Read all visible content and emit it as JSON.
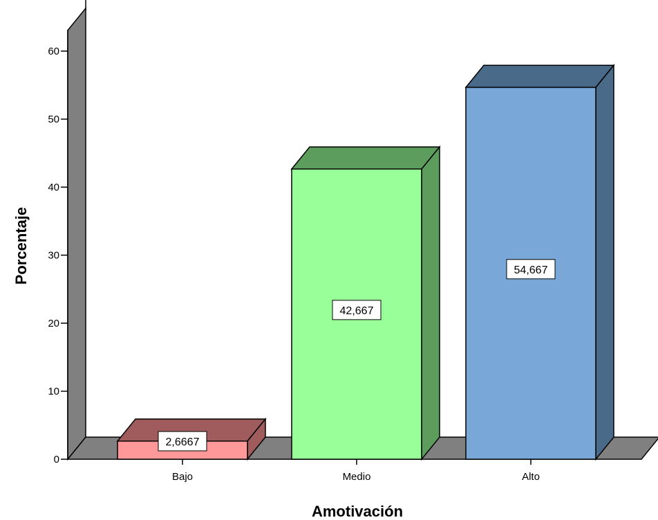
{
  "chart_data": {
    "type": "bar",
    "style": "3d",
    "xlabel": "Amotivación",
    "ylabel": "Porcentaje",
    "categories": [
      "Bajo",
      "Medio",
      "Alto"
    ],
    "values": [
      2.6667,
      42.667,
      54.667
    ],
    "value_labels": [
      "2,6667",
      "42,667",
      "54,667"
    ],
    "ylim": [
      0,
      60
    ],
    "yticks": [
      0,
      10,
      20,
      30,
      40,
      50,
      60
    ],
    "grid": false,
    "legend": "none",
    "colors": {
      "Bajo": {
        "front": "#ff9999",
        "side": "#a05c5c"
      },
      "Medio": {
        "front": "#99ff99",
        "side": "#5c9c5c"
      },
      "Alto": {
        "front": "#79a8d8",
        "side": "#4a6a8a"
      },
      "wall": "#808080"
    }
  }
}
